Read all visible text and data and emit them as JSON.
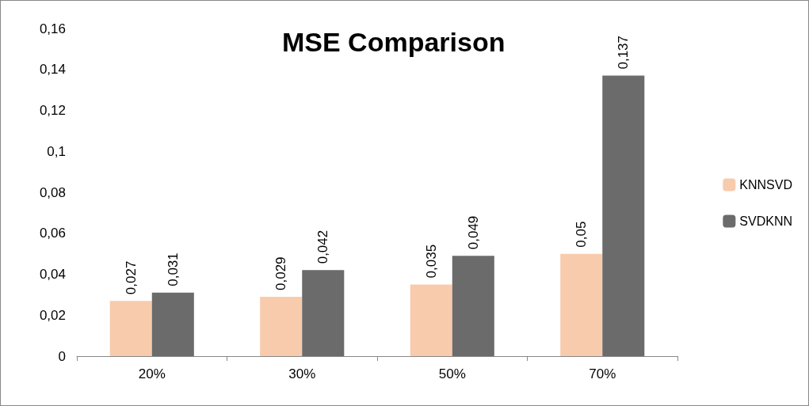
{
  "chart_data": {
    "type": "bar",
    "title": "MSE Comparison",
    "categories": [
      "20%",
      "30%",
      "50%",
      "70%"
    ],
    "series": [
      {
        "name": "KNNSVD",
        "color": "#f8cbad",
        "values": [
          0.027,
          0.029,
          0.035,
          0.05
        ],
        "value_labels": [
          "0,027",
          "0,029",
          "0,035",
          "0,05"
        ]
      },
      {
        "name": "SVDKNN",
        "color": "#6b6b6b",
        "values": [
          0.031,
          0.042,
          0.049,
          0.137
        ],
        "value_labels": [
          "0,031",
          "0,042",
          "0,049",
          "0,137"
        ]
      }
    ],
    "ylim": [
      0,
      0.16
    ],
    "yticks": [
      0,
      {
        "value": 0.02,
        "label": "0,02"
      },
      {
        "value": 0.04,
        "label": "0,04"
      },
      {
        "value": 0.06,
        "label": "0,06"
      },
      {
        "value": 0.08,
        "label": "0,08"
      },
      {
        "value": 0.1,
        "label": "0,1"
      },
      {
        "value": 0.12,
        "label": "0,12"
      },
      {
        "value": 0.14,
        "label": "0,14"
      },
      {
        "value": 0.16,
        "label": "0,16"
      }
    ],
    "grid": false,
    "legend": "right"
  }
}
